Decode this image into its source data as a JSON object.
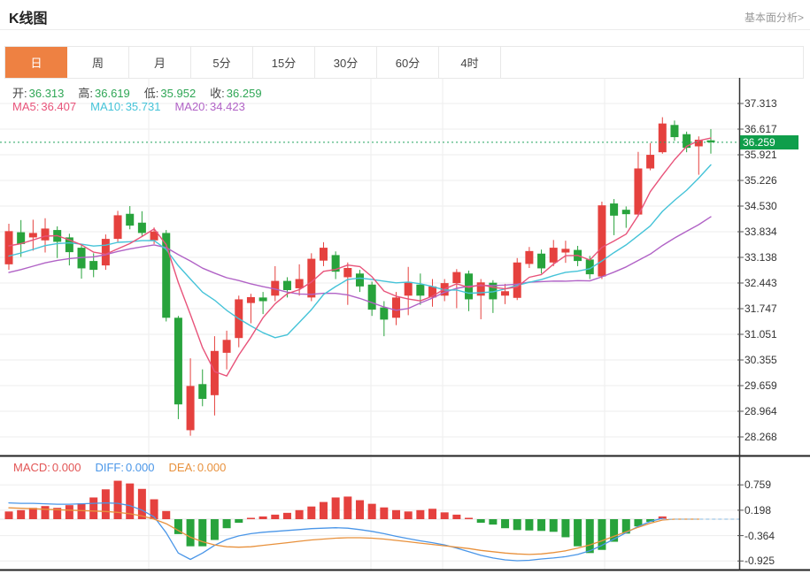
{
  "header": {
    "title": "K线图",
    "link": "基本面分析>"
  },
  "tabs": [
    {
      "label": "日",
      "active": true
    },
    {
      "label": "周",
      "active": false
    },
    {
      "label": "月",
      "active": false
    },
    {
      "label": "5分",
      "active": false
    },
    {
      "label": "15分",
      "active": false
    },
    {
      "label": "30分",
      "active": false
    },
    {
      "label": "60分",
      "active": false
    },
    {
      "label": "4时",
      "active": false
    }
  ],
  "legend": {
    "ohlc": [
      {
        "label": "开:",
        "value": "36.313"
      },
      {
        "label": "高:",
        "value": "36.619"
      },
      {
        "label": "低:",
        "value": "35.952"
      },
      {
        "label": "收:",
        "value": "36.259"
      }
    ],
    "ma": [
      {
        "label": "MA5:",
        "value": "36.407",
        "color": "#e8537a"
      },
      {
        "label": "MA10:",
        "value": "35.731",
        "color": "#45c3d8"
      },
      {
        "label": "MA20:",
        "value": "34.423",
        "color": "#b163c6"
      }
    ],
    "macd": [
      {
        "label": "MACD:",
        "value": "0.000",
        "color": "#e25555"
      },
      {
        "label": "DIFF:",
        "value": "0.000",
        "color": "#4a96e8"
      },
      {
        "label": "DEA:",
        "value": "0.000",
        "color": "#e8913c"
      }
    ]
  },
  "price_tag": {
    "value": "36.259"
  },
  "colors": {
    "up": "#e5413e",
    "down": "#28a33c",
    "ma5": "#e8537a",
    "ma10": "#45c3d8",
    "ma20": "#b163c6",
    "diff": "#4a96e8",
    "dea": "#e8913c",
    "dashed_zero": "#9fc8e8",
    "accent_tab": "#ee8142",
    "price_tag_bg": "#0f9e4b",
    "dotted_line": "#21a35c",
    "grid": "#ededed",
    "axis": "#333333",
    "dark_line": "#222222"
  },
  "chart_data": {
    "type": "candlestick",
    "title": "K线图",
    "legend_position": "top-left",
    "grid": true,
    "panels": [
      "price",
      "macd"
    ],
    "price": {
      "y_ticks": [
        "37.313",
        "36.617",
        "35.921",
        "35.226",
        "34.530",
        "33.834",
        "33.138",
        "32.443",
        "31.747",
        "31.051",
        "30.355",
        "29.659",
        "28.964",
        "28.268"
      ],
      "ylim": [
        27.9,
        38.0
      ],
      "current_price": 36.259,
      "ma_periods": [
        5,
        10,
        20
      ],
      "ma_seed_closes": [
        31.9,
        32.0,
        32.1,
        32.2,
        32.3,
        32.3,
        32.4,
        32.5,
        32.5,
        32.6,
        32.7,
        32.8,
        32.9,
        33.0,
        33.1,
        33.2,
        33.3,
        33.4,
        33.5
      ],
      "candles_ohlc": [
        [
          32.95,
          34.05,
          32.8,
          33.85
        ],
        [
          33.82,
          34.15,
          33.15,
          33.5
        ],
        [
          33.68,
          34.16,
          33.32,
          33.8
        ],
        [
          33.6,
          34.2,
          33.27,
          33.92
        ],
        [
          33.88,
          33.98,
          33.12,
          33.56
        ],
        [
          33.68,
          33.78,
          32.92,
          33.28
        ],
        [
          33.4,
          33.5,
          32.56,
          32.84
        ],
        [
          33.04,
          33.25,
          32.6,
          32.8
        ],
        [
          32.92,
          33.76,
          32.8,
          33.64
        ],
        [
          33.64,
          34.4,
          33.55,
          34.28
        ],
        [
          34.32,
          34.53,
          33.9,
          34.0
        ],
        [
          34.08,
          34.39,
          33.72,
          33.8
        ],
        [
          33.6,
          33.95,
          33.5,
          33.84
        ],
        [
          33.8,
          33.88,
          31.4,
          31.5
        ],
        [
          31.5,
          31.55,
          28.75,
          29.15
        ],
        [
          28.45,
          30.4,
          28.3,
          29.65
        ],
        [
          29.7,
          30.1,
          29.1,
          29.3
        ],
        [
          29.4,
          31.0,
          28.85,
          30.6
        ],
        [
          30.55,
          31.15,
          30.1,
          30.9
        ],
        [
          30.95,
          32.1,
          30.7,
          32.0
        ],
        [
          31.9,
          32.15,
          31.35,
          32.06
        ],
        [
          32.05,
          32.2,
          31.6,
          31.95
        ],
        [
          32.1,
          32.9,
          31.95,
          32.5
        ],
        [
          32.5,
          32.6,
          32.05,
          32.25
        ],
        [
          32.3,
          32.95,
          32.1,
          32.55
        ],
        [
          32.05,
          33.25,
          31.95,
          33.1
        ],
        [
          33.05,
          33.55,
          32.9,
          33.4
        ],
        [
          33.2,
          33.3,
          32.55,
          32.75
        ],
        [
          32.6,
          33.0,
          31.85,
          32.85
        ],
        [
          32.7,
          32.8,
          32.2,
          32.35
        ],
        [
          32.4,
          32.48,
          31.55,
          31.72
        ],
        [
          31.78,
          31.95,
          31.0,
          31.45
        ],
        [
          31.5,
          32.2,
          31.3,
          32.05
        ],
        [
          32.1,
          32.88,
          31.57,
          32.47
        ],
        [
          32.4,
          32.7,
          31.85,
          32.1
        ],
        [
          32.05,
          32.55,
          31.8,
          32.35
        ],
        [
          32.1,
          32.55,
          31.95,
          32.44
        ],
        [
          32.44,
          32.82,
          31.76,
          32.74
        ],
        [
          32.7,
          32.78,
          31.68,
          32.0
        ],
        [
          32.1,
          32.55,
          31.46,
          32.46
        ],
        [
          32.45,
          32.52,
          31.63,
          32.0
        ],
        [
          32.1,
          32.42,
          31.87,
          32.22
        ],
        [
          32.04,
          33.12,
          31.98,
          33.0
        ],
        [
          32.96,
          33.42,
          32.85,
          33.31
        ],
        [
          33.24,
          33.35,
          32.7,
          32.84
        ],
        [
          33.0,
          33.61,
          32.9,
          33.4
        ],
        [
          33.27,
          33.59,
          32.99,
          33.37
        ],
        [
          33.34,
          33.45,
          32.9,
          33.04
        ],
        [
          33.08,
          33.18,
          32.55,
          32.68
        ],
        [
          32.62,
          34.65,
          32.55,
          34.55
        ],
        [
          34.6,
          34.72,
          33.74,
          34.27
        ],
        [
          34.43,
          34.52,
          33.94,
          34.31
        ],
        [
          34.3,
          36.0,
          34.25,
          35.55
        ],
        [
          35.55,
          36.24,
          35.5,
          35.92
        ],
        [
          35.99,
          36.94,
          35.95,
          36.77
        ],
        [
          36.73,
          36.85,
          36.3,
          36.4
        ],
        [
          36.48,
          36.55,
          35.99,
          36.11
        ],
        [
          36.15,
          36.42,
          35.38,
          36.33
        ],
        [
          36.313,
          36.619,
          35.952,
          36.259
        ]
      ]
    },
    "macd": {
      "y_ticks": [
        "0.759",
        "0.198",
        "-0.364",
        "-0.925"
      ],
      "ylim": [
        -1.15,
        1.35
      ],
      "hist": [
        0.17,
        0.2,
        0.25,
        0.29,
        0.25,
        0.31,
        0.35,
        0.48,
        0.66,
        0.85,
        0.79,
        0.67,
        0.44,
        0.18,
        -0.33,
        -0.6,
        -0.6,
        -0.46,
        -0.2,
        -0.08,
        0.03,
        0.06,
        0.1,
        0.14,
        0.2,
        0.28,
        0.38,
        0.48,
        0.5,
        0.42,
        0.34,
        0.26,
        0.2,
        0.17,
        0.2,
        0.23,
        0.15,
        0.1,
        0.03,
        -0.08,
        -0.12,
        -0.2,
        -0.24,
        -0.25,
        -0.26,
        -0.28,
        -0.4,
        -0.6,
        -0.75,
        -0.68,
        -0.5,
        -0.32,
        -0.16,
        -0.06,
        0.06,
        0,
        0,
        0,
        0
      ],
      "diff": [
        0.36,
        0.35,
        0.35,
        0.34,
        0.33,
        0.33,
        0.34,
        0.35,
        0.36,
        0.35,
        0.3,
        0.2,
        0.05,
        -0.3,
        -0.75,
        -0.89,
        -0.75,
        -0.58,
        -0.45,
        -0.37,
        -0.32,
        -0.29,
        -0.27,
        -0.25,
        -0.23,
        -0.21,
        -0.2,
        -0.19,
        -0.2,
        -0.23,
        -0.27,
        -0.32,
        -0.38,
        -0.43,
        -0.48,
        -0.52,
        -0.57,
        -0.64,
        -0.72,
        -0.8,
        -0.86,
        -0.9,
        -0.92,
        -0.91,
        -0.88,
        -0.86,
        -0.83,
        -0.78,
        -0.7,
        -0.58,
        -0.44,
        -0.3,
        -0.16,
        -0.05,
        0.02,
        0,
        0,
        0,
        0
      ],
      "dea": [
        0.25,
        0.24,
        0.23,
        0.22,
        0.21,
        0.2,
        0.19,
        0.18,
        0.17,
        0.15,
        0.12,
        0.07,
        0.0,
        -0.1,
        -0.25,
        -0.4,
        -0.5,
        -0.57,
        -0.61,
        -0.62,
        -0.61,
        -0.58,
        -0.55,
        -0.52,
        -0.49,
        -0.46,
        -0.44,
        -0.42,
        -0.41,
        -0.41,
        -0.42,
        -0.44,
        -0.47,
        -0.5,
        -0.53,
        -0.56,
        -0.59,
        -0.62,
        -0.65,
        -0.69,
        -0.72,
        -0.75,
        -0.77,
        -0.78,
        -0.77,
        -0.74,
        -0.7,
        -0.64,
        -0.57,
        -0.48,
        -0.38,
        -0.28,
        -0.18,
        -0.09,
        -0.02,
        0,
        0,
        0,
        0
      ],
      "flat_from_index": 55
    }
  }
}
